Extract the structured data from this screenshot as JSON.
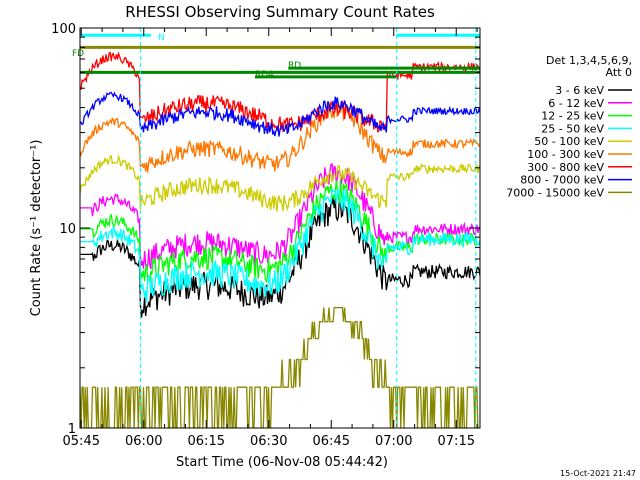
{
  "chart_data": {
    "type": "line",
    "title": "RHESSI Observing Summary Count Rates",
    "xlabel": "Start Time (06-Nov-08 05:44:42)",
    "ylabel": "Count Rate (s⁻¹ detector⁻¹)",
    "x_scale": "time",
    "x_range_minutes": [
      0,
      96
    ],
    "y_scale": "log",
    "ylim": [
      1,
      100
    ],
    "x_ticks": [
      "05:45",
      "06:00",
      "06:15",
      "06:30",
      "06:45",
      "07:00",
      "07:15"
    ],
    "y_ticks": [
      "1",
      "10",
      "100"
    ],
    "legend_header": [
      "Det 1,3,4,5,6,9,",
      "Att 0"
    ],
    "legend_placement": "right",
    "footer": "15-Oct-2021 21:47",
    "flags": [
      {
        "label": "N",
        "color": "#00ffff"
      },
      {
        "label": "FD",
        "color": "#008800"
      },
      {
        "label": "RD4",
        "color": "#008800"
      },
      {
        "label": "RD",
        "color": "#008800"
      }
    ],
    "series": [
      {
        "name": "3 - 6 keV",
        "color": "#000000"
      },
      {
        "name": "6 - 12 keV",
        "color": "#ff00ff"
      },
      {
        "name": "12 - 25 keV",
        "color": "#00ff00"
      },
      {
        "name": "25 - 50 keV",
        "color": "#00ffff"
      },
      {
        "name": "50 - 100 keV",
        "color": "#cccc00"
      },
      {
        "name": "100 - 300 keV",
        "color": "#ff7700"
      },
      {
        "name": "300 - 800 keV",
        "color": "#ff0000"
      },
      {
        "name": "800 - 7000 keV",
        "color": "#0000ff"
      },
      {
        "name": "7000 - 15000 keV",
        "color": "#888800"
      }
    ]
  }
}
